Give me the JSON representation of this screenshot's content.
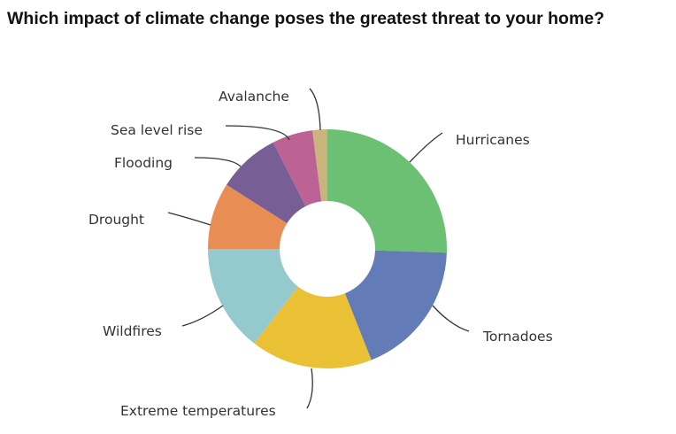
{
  "chart_data": {
    "type": "pie",
    "donut": true,
    "title": "Which impact of climate change poses the greatest threat to your home?",
    "slices": [
      {
        "label": "Hurricanes",
        "value": 25.5,
        "color": "#6cc073"
      },
      {
        "label": "Tornadoes",
        "value": 18.5,
        "color": "#637bb7"
      },
      {
        "label": "Extreme temperatures",
        "value": 16.5,
        "color": "#eac135"
      },
      {
        "label": "Wildfires",
        "value": 14.5,
        "color": "#94cacd"
      },
      {
        "label": "Drought",
        "value": 9.0,
        "color": "#e88e55"
      },
      {
        "label": "Flooding",
        "value": 8.5,
        "color": "#775f95"
      },
      {
        "label": "Sea level rise",
        "value": 5.5,
        "color": "#bd6295"
      },
      {
        "label": "Avalanche",
        "value": 2.0,
        "color": "#c9b47b"
      }
    ],
    "legend": "none"
  }
}
